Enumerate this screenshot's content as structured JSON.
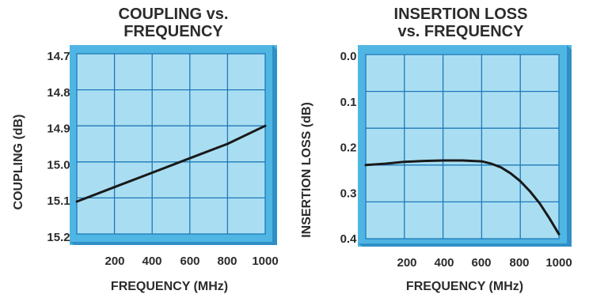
{
  "chart_data": [
    {
      "type": "line",
      "title_line1": "COUPLING vs.",
      "title_line2": "FREQUENCY",
      "xlabel": "FREQUENCY (MHz)",
      "ylabel": "COUPLING (dB)",
      "x_ticks": [
        "200",
        "400",
        "600",
        "800",
        "1000"
      ],
      "y_ticks": [
        "14.7",
        "14.8",
        "14.9",
        "15.0",
        "15.1",
        "15.2"
      ],
      "xlim": [
        0,
        1000
      ],
      "ylim": [
        14.7,
        15.2
      ],
      "y_inverted": true,
      "grid": true,
      "series": [
        {
          "x": [
            0,
            200,
            400,
            600,
            800,
            1000
          ],
          "y": [
            15.11,
            15.07,
            15.03,
            14.99,
            14.95,
            14.9
          ]
        }
      ]
    },
    {
      "type": "line",
      "title_line1": "INSERTION LOSS",
      "title_line2": "vs. FREQUENCY",
      "xlabel": "FREQUENCY (MHz)",
      "ylabel": "INSERTION LOSS (dB)",
      "x_ticks": [
        "200",
        "400",
        "600",
        "800",
        "1000"
      ],
      "y_ticks": [
        "0.0",
        "0.1",
        "0.2",
        "0.3",
        "0.4"
      ],
      "xlim": [
        0,
        1000
      ],
      "ylim": [
        0,
        0.4
      ],
      "y_inverted": true,
      "grid": true,
      "series": [
        {
          "x": [
            0,
            100,
            200,
            300,
            400,
            500,
            600,
            650,
            700,
            750,
            800,
            850,
            900,
            950,
            1000
          ],
          "y": [
            0.24,
            0.237,
            0.233,
            0.231,
            0.23,
            0.23,
            0.232,
            0.237,
            0.245,
            0.258,
            0.275,
            0.297,
            0.323,
            0.355,
            0.39
          ]
        }
      ]
    }
  ],
  "colors": {
    "plot_fill": "#a9def2",
    "frame_fill": "#4fb6e4",
    "frame_dark": "#2f8fc6",
    "grid": "#1f78b8",
    "line": "#1a1a1a",
    "text": "#2b2b2b"
  }
}
